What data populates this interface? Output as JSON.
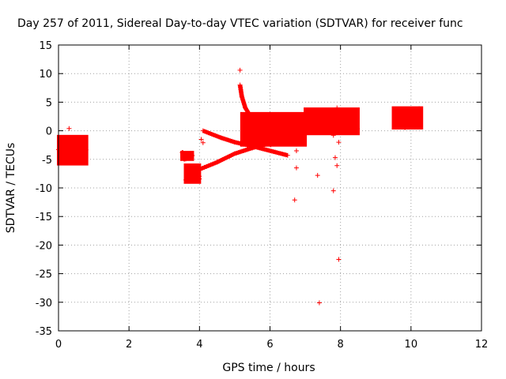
{
  "chart_data": {
    "type": "scatter",
    "title": "Day 257 of 2011, Sidereal Day-to-day VTEC variation (SDTVAR) for receiver func",
    "xlabel": "GPS time / hours",
    "ylabel": "SDTVAR / TECUs",
    "xlim": [
      0,
      12
    ],
    "ylim": [
      -35,
      15
    ],
    "xticks": [
      "0",
      "2",
      "4",
      "6",
      "8",
      "10",
      "12"
    ],
    "yticks": [
      "15",
      "10",
      "5",
      "0",
      "-5",
      "-10",
      "-15",
      "-20",
      "-25",
      "-30",
      "-35"
    ],
    "grid": true,
    "marker": "+",
    "color": "#ff0000",
    "dense_regions": [
      {
        "name": "early-cluster",
        "x": [
          0.0,
          0.8
        ],
        "y": [
          -5.8,
          -1.0
        ]
      },
      {
        "name": "morning-cluster",
        "x": [
          3.5,
          3.8
        ],
        "y": [
          -5.0,
          -3.8
        ]
      },
      {
        "name": "morning-cluster-low",
        "x": [
          3.6,
          4.0
        ],
        "y": [
          -9.0,
          -6.0
        ]
      },
      {
        "name": "midday-blob",
        "x": [
          5.2,
          7.0
        ],
        "y": [
          -2.5,
          3.0
        ]
      },
      {
        "name": "afternoon-band",
        "x": [
          7.0,
          8.5
        ],
        "y": [
          -0.5,
          3.8
        ]
      },
      {
        "name": "evening-cluster",
        "x": [
          9.5,
          10.3
        ],
        "y": [
          0.5,
          4.0
        ]
      }
    ],
    "tracks": [
      {
        "name": "rising-track",
        "points": [
          [
            3.9,
            -7.0
          ],
          [
            4.5,
            -5.5
          ],
          [
            5.0,
            -4.0
          ],
          [
            5.5,
            -3.0
          ],
          [
            6.0,
            -2.2
          ],
          [
            6.5,
            -1.5
          ],
          [
            7.0,
            -0.5
          ]
        ]
      },
      {
        "name": "descending-track",
        "points": [
          [
            4.1,
            0.0
          ],
          [
            4.6,
            -1.2
          ],
          [
            5.0,
            -2.0
          ],
          [
            5.5,
            -2.7
          ],
          [
            6.0,
            -3.5
          ],
          [
            6.5,
            -4.3
          ]
        ]
      },
      {
        "name": "steep-arc",
        "points": [
          [
            5.15,
            8.0
          ],
          [
            5.2,
            6.0
          ],
          [
            5.3,
            4.0
          ],
          [
            5.45,
            2.5
          ],
          [
            5.7,
            1.5
          ],
          [
            6.0,
            1.0
          ],
          [
            6.5,
            0.5
          ],
          [
            7.0,
            0.0
          ]
        ]
      }
    ],
    "outliers": [
      {
        "x": 0.3,
        "y": 0.4
      },
      {
        "x": 5.15,
        "y": 10.6
      },
      {
        "x": 4.05,
        "y": -1.5
      },
      {
        "x": 4.1,
        "y": -2.1
      },
      {
        "x": 6.75,
        "y": -3.5
      },
      {
        "x": 6.75,
        "y": -6.5
      },
      {
        "x": 6.7,
        "y": -12.1
      },
      {
        "x": 7.35,
        "y": -7.8
      },
      {
        "x": 7.4,
        "y": -30.1
      },
      {
        "x": 7.8,
        "y": -0.8
      },
      {
        "x": 7.85,
        "y": -4.7
      },
      {
        "x": 7.9,
        "y": -6.1
      },
      {
        "x": 7.8,
        "y": -10.5
      },
      {
        "x": 7.95,
        "y": -2.0
      },
      {
        "x": 7.95,
        "y": -22.5
      },
      {
        "x": 7.9,
        "y": 4.0
      }
    ]
  }
}
